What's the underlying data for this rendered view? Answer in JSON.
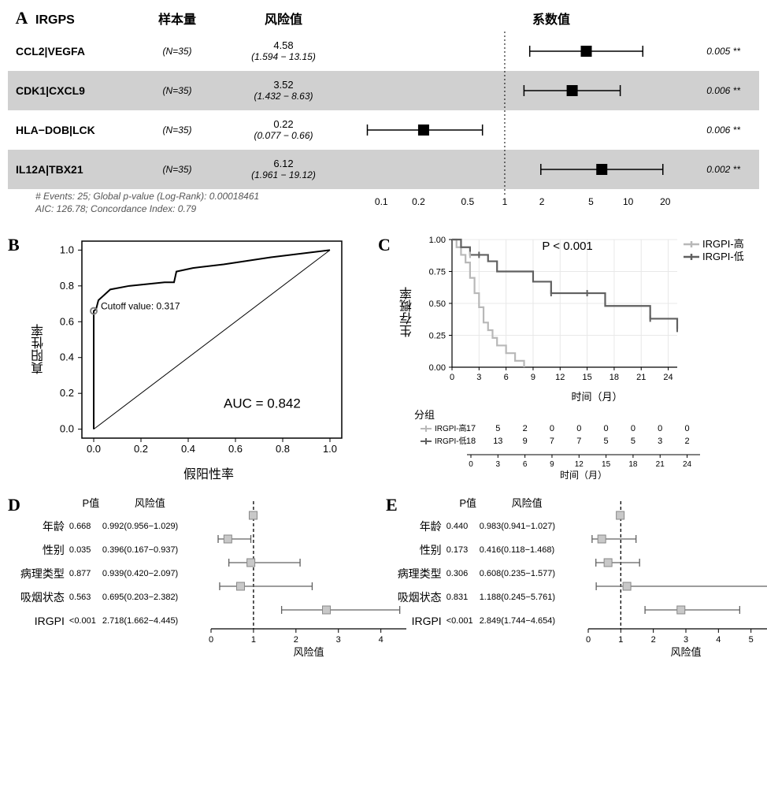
{
  "panelA": {
    "label": "A",
    "header_irgps": "IRGPS",
    "header_n": "样本量",
    "header_risk": "风险值",
    "header_coef": "系数值",
    "plot_type": "forest",
    "x_axis": {
      "scale": "log",
      "ticks": [
        0.1,
        0.2,
        0.5,
        1,
        2,
        5,
        10,
        20
      ],
      "range": [
        0.07,
        25
      ]
    },
    "refline_x": 1,
    "refline_style": "dotted",
    "marker_style": "square",
    "marker_size": 14,
    "marker_color": "#000000",
    "whisker_color": "#000000",
    "shade_color": "#d0d0d0",
    "rows": [
      {
        "name": "CCL2|VEGFA",
        "n": "(N=35)",
        "hr": "4.58",
        "ci": "(1.594 − 13.15)",
        "lo": 1.594,
        "pt": 4.58,
        "hi": 13.15,
        "p": "0.005 **",
        "shaded": false
      },
      {
        "name": "CDK1|CXCL9",
        "n": "(N=35)",
        "hr": "3.52",
        "ci": "(1.432 − 8.63)",
        "lo": 1.432,
        "pt": 3.52,
        "hi": 8.63,
        "p": "0.006 **",
        "shaded": true
      },
      {
        "name": "HLA−DOB|LCK",
        "n": "(N=35)",
        "hr": "0.22",
        "ci": "(0.077 − 0.66)",
        "lo": 0.077,
        "pt": 0.22,
        "hi": 0.66,
        "p": "0.006 **",
        "shaded": false
      },
      {
        "name": "IL12A|TBX21",
        "n": "(N=35)",
        "hr": "6.12",
        "ci": "(1.961 − 19.12)",
        "lo": 1.961,
        "pt": 6.12,
        "hi": 19.12,
        "p": "0.002 **",
        "shaded": true
      }
    ],
    "footer1": "# Events: 25; Global p-value (Log-Rank): 0.00018461",
    "footer2": "AIC: 126.78; Concordance Index: 0.79"
  },
  "panelB": {
    "label": "B",
    "plot_type": "roc",
    "xlabel": "假阳性率",
    "ylabel": "真阳性率",
    "auc_text": "AUC = 0.842",
    "cutoff_text": "Cutoff value: 0.317",
    "xlim": [
      -0.05,
      1.05
    ],
    "ylim": [
      -0.05,
      1.05
    ],
    "ticks": [
      0.0,
      0.2,
      0.4,
      0.6,
      0.8,
      1.0
    ],
    "line_color": "#000000",
    "diag_color": "#000000",
    "cutoff_marker_color": "#808080",
    "roc_points": [
      [
        0.0,
        0.0
      ],
      [
        0.0,
        0.66
      ],
      [
        0.01,
        0.67
      ],
      [
        0.02,
        0.72
      ],
      [
        0.07,
        0.78
      ],
      [
        0.15,
        0.8
      ],
      [
        0.3,
        0.82
      ],
      [
        0.34,
        0.82
      ],
      [
        0.35,
        0.88
      ],
      [
        0.42,
        0.9
      ],
      [
        0.55,
        0.92
      ],
      [
        0.75,
        0.96
      ],
      [
        1.0,
        1.0
      ]
    ],
    "cutoff_point": [
      0.0,
      0.66
    ]
  },
  "panelC": {
    "label": "C",
    "plot_type": "kaplan-meier",
    "ylabel": "生存概率",
    "xlabel": "时间（月）",
    "group_label": "分组",
    "pval_text": "P < 0.001",
    "legend": [
      {
        "label": "IRGPI-高",
        "color": "#b8b8b8"
      },
      {
        "label": "IRGPI-低",
        "color": "#606060"
      }
    ],
    "xlim": [
      0,
      25
    ],
    "ylim": [
      0,
      1
    ],
    "xticks": [
      0,
      3,
      6,
      9,
      12,
      15,
      18,
      21,
      24
    ],
    "yticks": [
      0.0,
      0.25,
      0.5,
      0.75,
      1.0
    ],
    "grid_color": "#e8e8e8",
    "curve_high": [
      [
        0,
        1.0
      ],
      [
        0.5,
        1.0
      ],
      [
        0.5,
        0.94
      ],
      [
        1,
        0.94
      ],
      [
        1,
        0.88
      ],
      [
        1.5,
        0.88
      ],
      [
        1.5,
        0.82
      ],
      [
        2,
        0.82
      ],
      [
        2,
        0.7
      ],
      [
        2.5,
        0.7
      ],
      [
        2.5,
        0.58
      ],
      [
        3,
        0.58
      ],
      [
        3,
        0.47
      ],
      [
        3.5,
        0.47
      ],
      [
        3.5,
        0.35
      ],
      [
        4,
        0.35
      ],
      [
        4,
        0.29
      ],
      [
        4.5,
        0.29
      ],
      [
        4.5,
        0.23
      ],
      [
        5,
        0.23
      ],
      [
        5,
        0.17
      ],
      [
        6,
        0.17
      ],
      [
        6,
        0.11
      ],
      [
        7,
        0.11
      ],
      [
        7,
        0.05
      ],
      [
        8,
        0.05
      ],
      [
        8,
        0.0
      ]
    ],
    "curve_low": [
      [
        0,
        1.0
      ],
      [
        1,
        1.0
      ],
      [
        1,
        0.94
      ],
      [
        2,
        0.94
      ],
      [
        2,
        0.88
      ],
      [
        3,
        0.88
      ],
      [
        4,
        0.88
      ],
      [
        4,
        0.83
      ],
      [
        5,
        0.83
      ],
      [
        5,
        0.75
      ],
      [
        9,
        0.75
      ],
      [
        9,
        0.67
      ],
      [
        11,
        0.67
      ],
      [
        11,
        0.58
      ],
      [
        17,
        0.58
      ],
      [
        17,
        0.48
      ],
      [
        22,
        0.48
      ],
      [
        22,
        0.38
      ],
      [
        25,
        0.38
      ],
      [
        25,
        0.3
      ]
    ],
    "censor_high": [
      [
        2,
        0.88
      ]
    ],
    "censor_low": [
      [
        3,
        0.88
      ],
      [
        11,
        0.58
      ],
      [
        15,
        0.58
      ],
      [
        22,
        0.38
      ],
      [
        25,
        0.3
      ]
    ],
    "risk_table": {
      "times": [
        0,
        3,
        6,
        9,
        12,
        15,
        18,
        21,
        24
      ],
      "rows": [
        {
          "label": "IRGPI-高",
          "color": "#b8b8b8",
          "counts": [
            17,
            5,
            2,
            0,
            0,
            0,
            0,
            0,
            0
          ]
        },
        {
          "label": "IRGPI-低",
          "color": "#606060",
          "counts": [
            18,
            13,
            9,
            7,
            7,
            5,
            5,
            3,
            2
          ]
        }
      ],
      "xlabel": "时间（月）"
    }
  },
  "panelD": {
    "label": "D",
    "plot_type": "forest",
    "header_p": "P值",
    "header_r": "风险值",
    "xlabel": "风险值",
    "xlim": [
      0,
      4.6
    ],
    "xticks": [
      0,
      1,
      2,
      3,
      4
    ],
    "refline": 1,
    "marker_color": "#c8c8c8",
    "whisker_color": "#606060",
    "rows": [
      {
        "var": "年龄",
        "p": "0.668",
        "hr": "0.992(0.956−1.029)",
        "lo": 0.956,
        "pt": 0.992,
        "hi": 1.029
      },
      {
        "var": "性别",
        "p": "0.035",
        "hr": "0.396(0.167−0.937)",
        "lo": 0.167,
        "pt": 0.396,
        "hi": 0.937
      },
      {
        "var": "病理类型",
        "p": "0.877",
        "hr": "0.939(0.420−2.097)",
        "lo": 0.42,
        "pt": 0.939,
        "hi": 2.097
      },
      {
        "var": "吸烟状态",
        "p": "0.563",
        "hr": "0.695(0.203−2.382)",
        "lo": 0.203,
        "pt": 0.695,
        "hi": 2.382
      },
      {
        "var": "IRGPI",
        "p": "<0.001",
        "hr": "2.718(1.662−4.445)",
        "lo": 1.662,
        "pt": 2.718,
        "hi": 4.445
      }
    ]
  },
  "panelE": {
    "label": "E",
    "plot_type": "forest",
    "header_p": "P值",
    "header_r": "风险值",
    "xlabel": "风险值",
    "xlim": [
      0,
      6.0
    ],
    "xticks": [
      0,
      1,
      2,
      3,
      4,
      5
    ],
    "refline": 1,
    "marker_color": "#c8c8c8",
    "whisker_color": "#606060",
    "rows": [
      {
        "var": "年龄",
        "p": "0.440",
        "hr": "0.983(0.941−1.027)",
        "lo": 0.941,
        "pt": 0.983,
        "hi": 1.027
      },
      {
        "var": "性别",
        "p": "0.173",
        "hr": "0.416(0.118−1.468)",
        "lo": 0.118,
        "pt": 0.416,
        "hi": 1.468
      },
      {
        "var": "病理类型",
        "p": "0.306",
        "hr": "0.608(0.235−1.577)",
        "lo": 0.235,
        "pt": 0.608,
        "hi": 1.577
      },
      {
        "var": "吸烟状态",
        "p": "0.831",
        "hr": "1.188(0.245−5.761)",
        "lo": 0.245,
        "pt": 1.188,
        "hi": 5.761
      },
      {
        "var": "IRGPI",
        "p": "<0.001",
        "hr": "2.849(1.744−4.654)",
        "lo": 1.744,
        "pt": 2.849,
        "hi": 4.654
      }
    ]
  }
}
